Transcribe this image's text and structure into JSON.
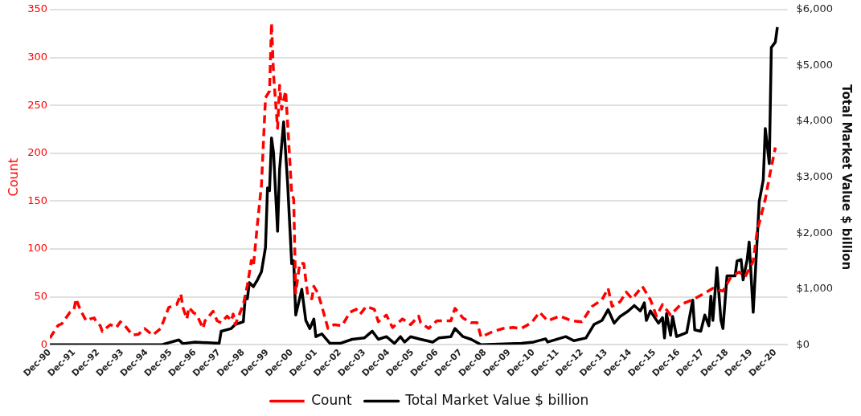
{
  "chart_data": {
    "type": "line",
    "ylabel": "Count",
    "y2label": "Total Market Value $ billion",
    "xlim": [
      "1990-12",
      "2021-06"
    ],
    "xticks": [
      {
        "value": "1990-12",
        "label": "Dec-90"
      },
      {
        "value": "1991-12",
        "label": "Dec-91"
      },
      {
        "value": "1992-12",
        "label": "Dec-92"
      },
      {
        "value": "1993-12",
        "label": "Dec-93"
      },
      {
        "value": "1994-12",
        "label": "Dec-94"
      },
      {
        "value": "1995-12",
        "label": "Dec-95"
      },
      {
        "value": "1996-12",
        "label": "Dec-96"
      },
      {
        "value": "1997-12",
        "label": "Dec-97"
      },
      {
        "value": "1998-12",
        "label": "Dec-98"
      },
      {
        "value": "1999-12",
        "label": "Dec-99"
      },
      {
        "value": "2000-12",
        "label": "Dec-00"
      },
      {
        "value": "2001-12",
        "label": "Dec-01"
      },
      {
        "value": "2002-12",
        "label": "Dec-02"
      },
      {
        "value": "2003-12",
        "label": "Dec-03"
      },
      {
        "value": "2004-12",
        "label": "Dec-04"
      },
      {
        "value": "2005-12",
        "label": "Dec-05"
      },
      {
        "value": "2006-12",
        "label": "Dec-06"
      },
      {
        "value": "2007-12",
        "label": "Dec-07"
      },
      {
        "value": "2008-12",
        "label": "Dec-08"
      },
      {
        "value": "2009-12",
        "label": "Dec-09"
      },
      {
        "value": "2010-12",
        "label": "Dec-10"
      },
      {
        "value": "2011-12",
        "label": "Dec-11"
      },
      {
        "value": "2012-12",
        "label": "Dec-12"
      },
      {
        "value": "2013-12",
        "label": "Dec-13"
      },
      {
        "value": "2014-12",
        "label": "Dec-14"
      },
      {
        "value": "2015-12",
        "label": "Dec-15"
      },
      {
        "value": "2016-12",
        "label": "Dec-16"
      },
      {
        "value": "2017-12",
        "label": "Dec-17"
      },
      {
        "value": "2018-12",
        "label": "Dec-18"
      },
      {
        "value": "2019-12",
        "label": "Dec-19"
      },
      {
        "value": "2020-12",
        "label": "Dec-20"
      }
    ],
    "ylim": [
      0,
      350
    ],
    "yticks": [
      0,
      50,
      100,
      150,
      200,
      250,
      300,
      350
    ],
    "y2lim": [
      0,
      6000
    ],
    "y2ticks": [
      {
        "value": 0,
        "label": "$0"
      },
      {
        "value": 1000,
        "label": "$1,000"
      },
      {
        "value": 2000,
        "label": "$2,000"
      },
      {
        "value": 3000,
        "label": "$3,000"
      },
      {
        "value": 4000,
        "label": "$4,000"
      },
      {
        "value": 5000,
        "label": "$5,000"
      },
      {
        "value": 6000,
        "label": "$6,000"
      }
    ],
    "grid": "y",
    "legend": "bottom",
    "marker": "none",
    "series": [
      {
        "name": "Count",
        "color": "#ff0000",
        "line_style": "dashed",
        "x": [
          "1990-12",
          "1991-04",
          "1991-06",
          "1991-10",
          "1991-12",
          "1992-01",
          "1992-03",
          "1992-06",
          "1992-08",
          "1992-10",
          "1992-11",
          "1993-01",
          "1993-02",
          "1993-06",
          "1993-09",
          "1993-11",
          "1994-02",
          "1994-05",
          "1994-08",
          "1994-11",
          "1995-03",
          "1995-07",
          "1995-11",
          "1996-03",
          "1996-05",
          "1996-06",
          "1996-08",
          "1996-09",
          "1996-11",
          "1997-01",
          "1997-04",
          "1997-05",
          "1997-09",
          "1997-11",
          "1998-01",
          "1998-04",
          "1998-06",
          "1998-07",
          "1998-08",
          "1998-12",
          "1999-02",
          "1999-04",
          "1999-05",
          "1999-07",
          "1999-09",
          "1999-11",
          "2000-01",
          "2000-02",
          "2000-03",
          "2000-05",
          "2000-06",
          "2000-07",
          "2000-09",
          "2000-10",
          "2000-12",
          "2001-01",
          "2001-02",
          "2001-04",
          "2001-06",
          "2001-08",
          "2001-10",
          "2001-11",
          "2002-01",
          "2002-03",
          "2002-06",
          "2002-09",
          "2003-01",
          "2003-05",
          "2003-08",
          "2003-10",
          "2004-01",
          "2004-05",
          "2004-07",
          "2004-11",
          "2005-02",
          "2005-07",
          "2005-11",
          "2006-03",
          "2006-04",
          "2006-08",
          "2006-12",
          "2007-07",
          "2007-09",
          "2008-01",
          "2008-05",
          "2008-08",
          "2008-10",
          "2009-04",
          "2009-09",
          "2010-02",
          "2010-06",
          "2010-11",
          "2011-03",
          "2011-07",
          "2012-01",
          "2012-07",
          "2012-12",
          "2013-05",
          "2013-10",
          "2014-01",
          "2014-03",
          "2014-07",
          "2014-10",
          "2015-01",
          "2015-06",
          "2015-10",
          "2016-01",
          "2016-04",
          "2016-08",
          "2017-01",
          "2017-07",
          "2018-01",
          "2018-05",
          "2018-10",
          "2019-02",
          "2019-06",
          "2019-09",
          "2020-01",
          "2020-03",
          "2020-07",
          "2020-09",
          "2020-12"
        ],
        "values": [
          7,
          20,
          22,
          34,
          37,
          48,
          37,
          25,
          27,
          28,
          24,
          20,
          14,
          21,
          18,
          24,
          18,
          10,
          11,
          17,
          10,
          17,
          39,
          42,
          53,
          39,
          27,
          39,
          34,
          31,
          17,
          25,
          35,
          25,
          23,
          30,
          25,
          32,
          21,
          42,
          62,
          88,
          82,
          126,
          167,
          258,
          265,
          336,
          282,
          226,
          271,
          246,
          265,
          231,
          158,
          152,
          54,
          85,
          85,
          51,
          48,
          61,
          54,
          40,
          17,
          21,
          20,
          34,
          37,
          32,
          40,
          37,
          24,
          31,
          18,
          27,
          21,
          30,
          23,
          17,
          25,
          25,
          38,
          28,
          23,
          23,
          8,
          14,
          17,
          18,
          17,
          23,
          34,
          25,
          30,
          25,
          24,
          40,
          47,
          59,
          40,
          45,
          55,
          48,
          61,
          47,
          30,
          42,
          31,
          42,
          47,
          54,
          59,
          56,
          71,
          76,
          71,
          87,
          119,
          152,
          175,
          206
        ]
      },
      {
        "name": "Total Market Value $ billion",
        "color": "#000000",
        "line_style": "solid",
        "axis": "y2",
        "x": [
          "1990-12",
          "1995-08",
          "1996-04",
          "1996-06",
          "1996-12",
          "1997-12",
          "1998-01",
          "1998-06",
          "1998-08",
          "1998-12",
          "1999-01",
          "1999-02",
          "1999-03",
          "1999-05",
          "1999-07",
          "1999-09",
          "1999-11",
          "1999-12",
          "2000-01",
          "2000-02",
          "2000-03",
          "2000-05",
          "2000-06",
          "2000-08",
          "2000-10",
          "2000-12",
          "2001-01",
          "2001-02",
          "2001-05",
          "2001-07",
          "2001-09",
          "2001-11",
          "2001-12",
          "2002-03",
          "2002-07",
          "2002-12",
          "2003-06",
          "2003-12",
          "2004-04",
          "2004-07",
          "2004-11",
          "2005-03",
          "2005-06",
          "2005-08",
          "2005-11",
          "2006-04",
          "2006-10",
          "2007-01",
          "2007-07",
          "2007-09",
          "2008-01",
          "2008-05",
          "2008-10",
          "2010-06",
          "2010-12",
          "2011-06",
          "2011-07",
          "2012-04",
          "2012-08",
          "2013-02",
          "2013-06",
          "2013-10",
          "2014-01",
          "2014-04",
          "2014-07",
          "2014-11",
          "2015-02",
          "2015-05",
          "2015-07",
          "2015-08",
          "2015-10",
          "2016-02",
          "2016-04",
          "2016-05",
          "2016-06",
          "2016-08",
          "2016-09",
          "2016-11",
          "2017-04",
          "2017-07",
          "2017-08",
          "2017-11",
          "2018-01",
          "2018-03",
          "2018-04",
          "2018-05",
          "2018-07",
          "2018-09",
          "2018-10",
          "2018-12",
          "2019-04",
          "2019-05",
          "2019-07",
          "2019-08",
          "2019-10",
          "2019-11",
          "2020-01",
          "2020-04",
          "2020-06",
          "2020-07",
          "2020-09",
          "2020-10",
          "2020-12",
          "2021-01"
        ],
        "values": [
          0,
          5,
          87,
          20,
          48,
          24,
          242,
          290,
          363,
          411,
          871,
          823,
          1113,
          1040,
          1161,
          1307,
          1742,
          2807,
          2758,
          3702,
          3436,
          2032,
          3145,
          3992,
          2879,
          1452,
          1500,
          532,
          992,
          436,
          290,
          460,
          145,
          194,
          24,
          24,
          97,
          121,
          242,
          97,
          145,
          24,
          145,
          48,
          145,
          97,
          48,
          121,
          145,
          290,
          145,
          97,
          0,
          24,
          48,
          106,
          48,
          145,
          73,
          121,
          363,
          436,
          629,
          387,
          508,
          605,
          702,
          605,
          750,
          436,
          605,
          387,
          484,
          121,
          557,
          169,
          508,
          145,
          218,
          798,
          266,
          242,
          532,
          339,
          871,
          436,
          1379,
          436,
          290,
          1234,
          1234,
          1500,
          1524,
          1161,
          1524,
          1839,
          581,
          2565,
          2952,
          3871,
          3242,
          5323,
          5420,
          5686
        ]
      }
    ]
  }
}
